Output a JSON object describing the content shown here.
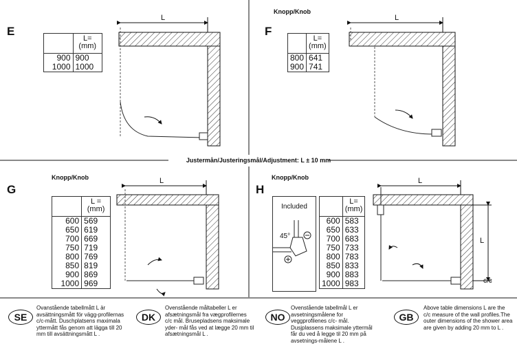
{
  "adjustment": "Justermån/Justeringsmål/Adjustment: L ± 10 mm",
  "dimension_label": "L",
  "cc_label": "c/c",
  "panels": {
    "E": {
      "label": "E",
      "header": "L=\n(mm)",
      "rows": [
        [
          "900",
          "900"
        ],
        [
          "1000",
          "1000"
        ]
      ]
    },
    "F": {
      "label": "F",
      "knob": "Knopp/Knob",
      "header": "L=\n(mm)",
      "rows": [
        [
          "800",
          "641"
        ],
        [
          "900",
          "741"
        ]
      ]
    },
    "G": {
      "label": "G",
      "knob": "Knopp/Knob",
      "header": "L =\n(mm)",
      "rows": [
        [
          "600",
          "569"
        ],
        [
          "650",
          "619"
        ],
        [
          "700",
          "669"
        ],
        [
          "750",
          "719"
        ],
        [
          "800",
          "769"
        ],
        [
          "850",
          "819"
        ],
        [
          "900",
          "869"
        ],
        [
          "1000",
          "969"
        ]
      ]
    },
    "H": {
      "label": "H",
      "knob": "Knopp/Knob",
      "included": "Included",
      "angle": "45°",
      "header": "L=\n(mm)",
      "rows": [
        [
          "600",
          "583"
        ],
        [
          "650",
          "633"
        ],
        [
          "700",
          "683"
        ],
        [
          "750",
          "733"
        ],
        [
          "800",
          "783"
        ],
        [
          "850",
          "833"
        ],
        [
          "900",
          "883"
        ],
        [
          "1000",
          "983"
        ]
      ]
    }
  },
  "notes": [
    {
      "code": "SE",
      "text": "Ovanstående tabellmått L är avsättningsmått för vägg-profilernas c/c-mått. Duschplatsens maximala yttermått fås genom att lägga till 20 mm till avsättningsmått L ."
    },
    {
      "code": "DK",
      "text": "Ovenstående måltabeller L er afsætningsmål fra vægprofilernes c/c mål. Brusepladsens maksimale yder- mål fås ved at lægge 20 mm til afsætningsmål L ."
    },
    {
      "code": "NO",
      "text": "Ovenstående tabellmål L er avsetningsmålene for veggprofilenes c/c- mål. Dusjplassens maksimale yttermål får du ved å legge til 20 mm på avsetnings-målene L ."
    },
    {
      "code": "GB",
      "text": "Above table dimensions L are the c/c measure of the wall profiles.The outer dimensions of the shower area are given by adding 20 mm to L ."
    }
  ]
}
